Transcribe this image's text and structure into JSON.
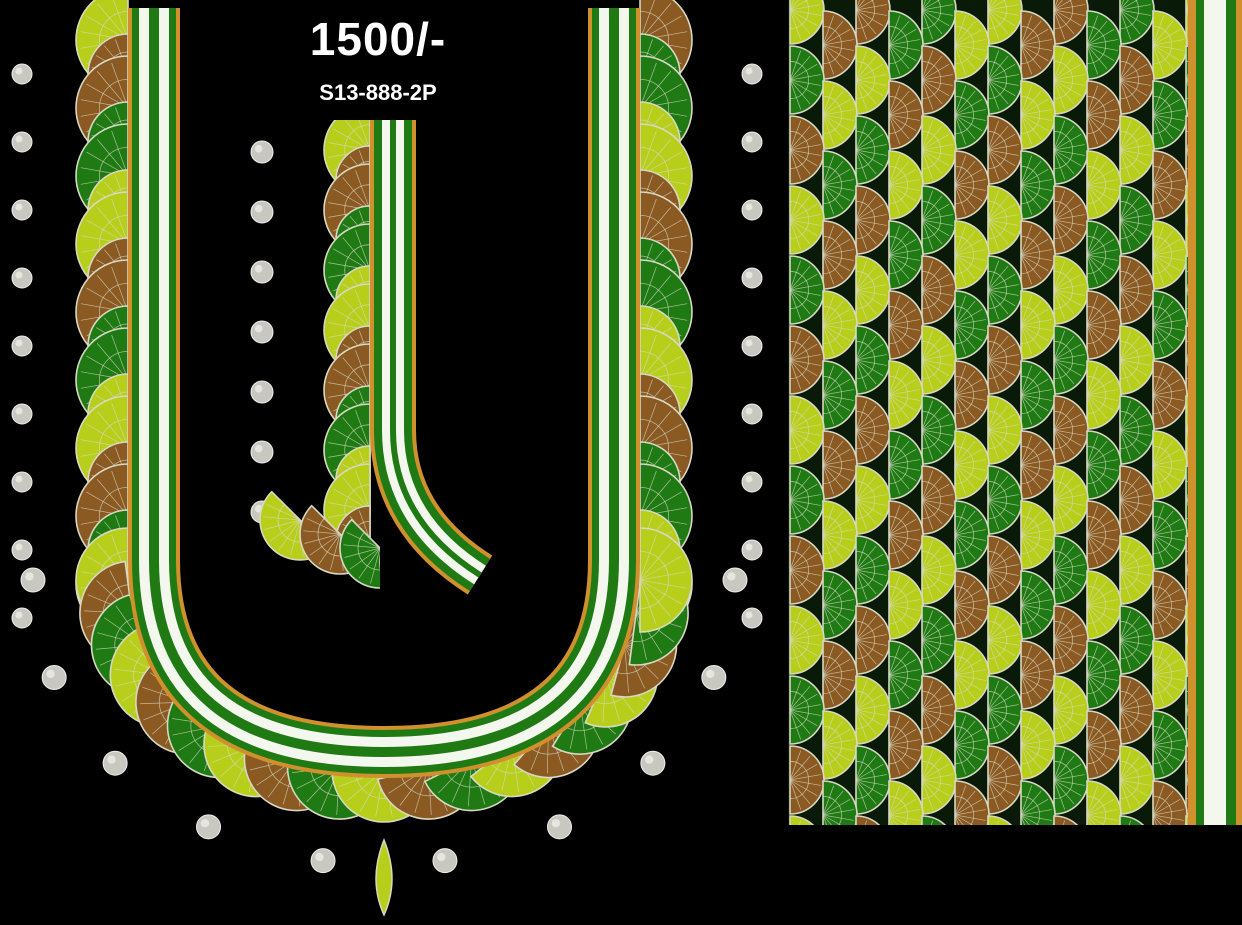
{
  "price_label": "1500/-",
  "design_code": "S13-888-2P",
  "palette": {
    "background": "#000000",
    "green": "#1f7a14",
    "yellow_green": "#b7cf1a",
    "brown": "#8a5a22",
    "orange_border": "#d0902e",
    "white_band": "#f4f7ee",
    "outline": "#d8d8c4",
    "bead": "#c8c8c0"
  },
  "motifs": {
    "fan_scallop": "fan-scallop-motif",
    "bead_drop": "bead-drop-motif"
  }
}
